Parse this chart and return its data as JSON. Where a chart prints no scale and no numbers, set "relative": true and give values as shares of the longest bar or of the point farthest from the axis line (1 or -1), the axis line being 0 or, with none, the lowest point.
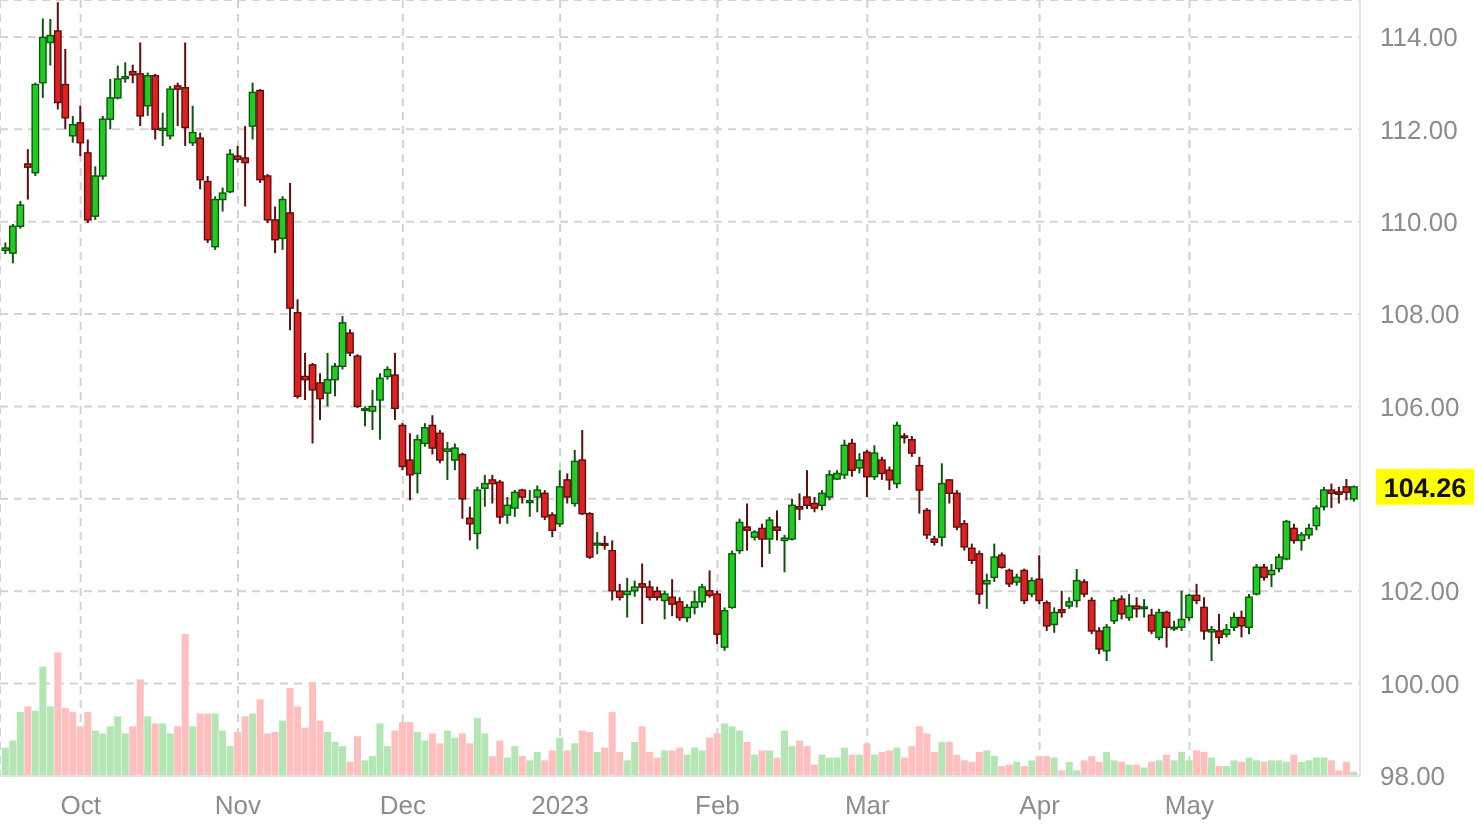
{
  "chart_data": [
    {
      "type": "candlestick",
      "categories": [
        null,
        null,
        null,
        null,
        null,
        null,
        null,
        null,
        null,
        null,
        "Oct",
        null,
        null,
        null,
        null,
        null,
        null,
        null,
        null,
        null,
        null,
        null,
        null,
        null,
        null,
        null,
        null,
        null,
        null,
        null,
        null,
        "Nov",
        null,
        null,
        null,
        null,
        null,
        null,
        null,
        null,
        null,
        null,
        null,
        null,
        null,
        null,
        null,
        null,
        null,
        null,
        null,
        null,
        null,
        "Dec",
        null,
        null,
        null,
        null,
        null,
        null,
        null,
        null,
        null,
        null,
        null,
        null,
        null,
        null,
        null,
        null,
        null,
        null,
        null,
        null,
        "2023",
        null,
        null,
        null,
        null,
        null,
        null,
        null,
        null,
        null,
        null,
        null,
        null,
        null,
        null,
        null,
        null,
        null,
        null,
        null,
        null,
        "Feb",
        null,
        null,
        null,
        null,
        null,
        null,
        null,
        null,
        null,
        null,
        null,
        null,
        null,
        null,
        null,
        null,
        null,
        null,
        null,
        "Mar",
        null,
        null,
        null,
        null,
        null,
        null,
        null,
        null,
        null,
        null,
        null,
        null,
        null,
        null,
        null,
        null,
        null,
        null,
        null,
        null,
        null,
        null,
        "Apr",
        null,
        null,
        null,
        null,
        null,
        null,
        null,
        null,
        null,
        null,
        null,
        null,
        null,
        null,
        null,
        null,
        null,
        null,
        null,
        "May",
        null,
        null,
        null,
        null,
        null,
        null,
        null,
        null,
        null,
        null,
        null,
        null,
        null,
        null,
        null,
        null,
        null,
        null,
        null,
        null,
        null,
        null
      ],
      "ohlc": [
        [
          109.38,
          109.55,
          109.3,
          109.43
        ],
        [
          109.32,
          109.95,
          109.1,
          109.9
        ],
        [
          109.9,
          110.45,
          109.85,
          110.36
        ],
        [
          111.25,
          111.57,
          110.48,
          111.18
        ],
        [
          111.06,
          113.01,
          110.99,
          112.97
        ],
        [
          113.01,
          114.4,
          112.68,
          113.99
        ],
        [
          113.88,
          114.39,
          113.38,
          114.03
        ],
        [
          114.13,
          114.75,
          112.43,
          112.58
        ],
        [
          112.97,
          113.74,
          112.0,
          112.25
        ],
        [
          111.86,
          112.29,
          111.71,
          112.1
        ],
        [
          112.14,
          112.51,
          111.42,
          111.71
        ],
        [
          111.49,
          111.78,
          109.97,
          110.04
        ],
        [
          110.12,
          111.2,
          110.04,
          110.99
        ],
        [
          110.99,
          112.29,
          110.91,
          112.22
        ],
        [
          112.22,
          113.09,
          112.0,
          112.68
        ],
        [
          112.68,
          113.38,
          112.65,
          113.09
        ],
        [
          113.1,
          113.45,
          113.01,
          113.14
        ],
        [
          113.25,
          113.4,
          113.0,
          113.18
        ],
        [
          113.2,
          113.88,
          112.07,
          112.29
        ],
        [
          112.51,
          113.23,
          112.29,
          113.16
        ],
        [
          113.16,
          113.2,
          111.78,
          112.0
        ],
        [
          111.98,
          112.36,
          111.64,
          112.02
        ],
        [
          111.86,
          112.94,
          111.78,
          112.87
        ],
        [
          112.94,
          113.01,
          112.07,
          112.87
        ],
        [
          112.9,
          113.88,
          111.64,
          112.04
        ],
        [
          111.71,
          112.51,
          111.64,
          111.93
        ],
        [
          111.81,
          111.93,
          110.7,
          110.91
        ],
        [
          110.87,
          110.99,
          109.54,
          109.61
        ],
        [
          109.46,
          110.55,
          109.39,
          110.48
        ],
        [
          110.48,
          110.74,
          110.22,
          110.62
        ],
        [
          110.65,
          111.57,
          110.62,
          111.46
        ],
        [
          111.42,
          111.64,
          111.28,
          111.35
        ],
        [
          111.38,
          112.07,
          110.33,
          111.28
        ],
        [
          112.07,
          113.01,
          111.78,
          112.8
        ],
        [
          112.84,
          112.87,
          110.84,
          110.91
        ],
        [
          110.99,
          111.03,
          109.97,
          110.04
        ],
        [
          110.04,
          110.33,
          109.32,
          109.61
        ],
        [
          109.64,
          110.55,
          109.39,
          110.48
        ],
        [
          110.19,
          110.84,
          107.65,
          108.13
        ],
        [
          108.03,
          108.32,
          106.17,
          106.22
        ],
        [
          106.65,
          107.16,
          106.14,
          106.58
        ],
        [
          106.9,
          106.94,
          105.2,
          106.36
        ],
        [
          106.51,
          106.72,
          105.71,
          106.17
        ],
        [
          106.29,
          107.16,
          106.0,
          106.58
        ],
        [
          106.58,
          106.94,
          106.22,
          106.87
        ],
        [
          106.87,
          107.96,
          106.8,
          107.81
        ],
        [
          107.59,
          107.67,
          107.09,
          107.16
        ],
        [
          107.09,
          107.13,
          105.97,
          106.0
        ],
        [
          105.92,
          106.0,
          105.57,
          105.95
        ],
        [
          105.9,
          106.36,
          105.49,
          106.0
        ],
        [
          106.14,
          106.72,
          105.28,
          106.61
        ],
        [
          106.65,
          106.87,
          106.58,
          106.8
        ],
        [
          106.68,
          107.16,
          105.71,
          105.96
        ],
        [
          105.59,
          105.64,
          104.62,
          104.7
        ],
        [
          104.84,
          105.42,
          103.97,
          104.52
        ],
        [
          104.55,
          105.39,
          104.12,
          105.28
        ],
        [
          105.2,
          105.64,
          105.13,
          105.54
        ],
        [
          105.59,
          105.81,
          104.96,
          105.1
        ],
        [
          105.42,
          105.49,
          104.77,
          104.84
        ],
        [
          105.03,
          105.23,
          104.41,
          105.08
        ],
        [
          104.84,
          105.2,
          104.62,
          105.1
        ],
        [
          104.96,
          105.0,
          103.57,
          104.0
        ],
        [
          103.58,
          103.83,
          103.1,
          103.46
        ],
        [
          103.25,
          104.26,
          102.91,
          104.19
        ],
        [
          104.23,
          104.52,
          103.83,
          104.33
        ],
        [
          104.41,
          104.52,
          103.9,
          104.33
        ],
        [
          104.36,
          104.41,
          103.46,
          103.61
        ],
        [
          103.65,
          104.04,
          103.46,
          103.86
        ],
        [
          103.8,
          104.19,
          103.61,
          104.14
        ],
        [
          104.19,
          104.22,
          103.9,
          104.04
        ],
        [
          103.92,
          104.19,
          103.61,
          103.96
        ],
        [
          104.04,
          104.29,
          103.71,
          104.19
        ],
        [
          104.12,
          104.19,
          103.54,
          103.61
        ],
        [
          103.65,
          103.71,
          103.17,
          103.32
        ],
        [
          103.46,
          104.62,
          103.39,
          104.26
        ],
        [
          104.41,
          104.55,
          103.9,
          104.04
        ],
        [
          103.9,
          105.06,
          103.83,
          104.81
        ],
        [
          104.84,
          105.49,
          103.65,
          103.68
        ],
        [
          103.68,
          103.71,
          102.7,
          102.74
        ],
        [
          103.0,
          103.28,
          102.8,
          103.04
        ],
        [
          103.03,
          103.2,
          102.9,
          103.0
        ],
        [
          102.88,
          103.1,
          101.8,
          102.01
        ],
        [
          102.0,
          102.16,
          101.8,
          101.87
        ],
        [
          101.93,
          102.29,
          101.43,
          102.0
        ],
        [
          102.01,
          102.23,
          101.88,
          102.09
        ],
        [
          102.16,
          102.6,
          101.29,
          102.09
        ],
        [
          102.09,
          102.23,
          101.8,
          101.87
        ],
        [
          102.0,
          102.1,
          101.8,
          101.87
        ],
        [
          101.8,
          102.01,
          101.39,
          101.94
        ],
        [
          101.87,
          102.26,
          101.46,
          101.72
        ],
        [
          101.77,
          101.87,
          101.36,
          101.43
        ],
        [
          101.43,
          101.72,
          101.33,
          101.65
        ],
        [
          101.65,
          102.01,
          101.5,
          101.77
        ],
        [
          101.77,
          102.16,
          101.65,
          102.09
        ],
        [
          102.01,
          102.45,
          101.86,
          101.91
        ],
        [
          101.94,
          102.01,
          100.86,
          101.07
        ],
        [
          100.79,
          101.65,
          100.71,
          101.58
        ],
        [
          101.65,
          102.88,
          101.62,
          102.81
        ],
        [
          102.88,
          103.57,
          102.81,
          103.49
        ],
        [
          103.39,
          103.9,
          102.88,
          103.32
        ],
        [
          103.17,
          103.32,
          103.1,
          103.28
        ],
        [
          103.36,
          103.46,
          102.52,
          103.13
        ],
        [
          103.13,
          103.61,
          102.81,
          103.54
        ],
        [
          103.39,
          103.75,
          103.1,
          103.32
        ],
        [
          103.1,
          103.22,
          102.41,
          103.15
        ],
        [
          103.13,
          104.0,
          103.1,
          103.86
        ],
        [
          103.83,
          104.12,
          103.54,
          103.78
        ],
        [
          104.04,
          104.62,
          103.78,
          103.86
        ],
        [
          103.9,
          104.04,
          103.71,
          103.8
        ],
        [
          103.86,
          104.19,
          103.75,
          104.12
        ],
        [
          104.04,
          104.62,
          103.97,
          104.52
        ],
        [
          104.43,
          104.62,
          104.41,
          104.55
        ],
        [
          104.52,
          105.28,
          104.43,
          105.16
        ],
        [
          105.2,
          105.3,
          104.48,
          104.62
        ],
        [
          104.67,
          104.99,
          104.55,
          104.84
        ],
        [
          105.01,
          105.06,
          104.04,
          104.48
        ],
        [
          104.48,
          105.16,
          104.41,
          104.99
        ],
        [
          104.84,
          104.91,
          104.41,
          104.55
        ],
        [
          104.62,
          104.7,
          104.19,
          104.41
        ],
        [
          104.33,
          105.67,
          104.23,
          105.59
        ],
        [
          105.36,
          105.42,
          105.2,
          105.33
        ],
        [
          105.28,
          105.36,
          104.91,
          104.99
        ],
        [
          104.72,
          104.91,
          103.68,
          104.19
        ],
        [
          103.75,
          103.8,
          103.13,
          103.22
        ],
        [
          103.13,
          103.2,
          102.99,
          103.06
        ],
        [
          103.17,
          104.77,
          102.97,
          104.33
        ],
        [
          104.41,
          104.43,
          103.9,
          104.12
        ],
        [
          104.12,
          104.19,
          103.32,
          103.39
        ],
        [
          103.46,
          103.54,
          102.88,
          102.96
        ],
        [
          102.93,
          103.03,
          102.59,
          102.67
        ],
        [
          102.81,
          102.88,
          101.72,
          101.94
        ],
        [
          102.16,
          102.38,
          101.62,
          102.23
        ],
        [
          102.3,
          103.03,
          102.2,
          102.74
        ],
        [
          102.78,
          102.84,
          102.49,
          102.52
        ],
        [
          102.45,
          102.49,
          102.09,
          102.16
        ],
        [
          102.2,
          102.38,
          102.12,
          102.3
        ],
        [
          102.45,
          102.49,
          101.72,
          101.8
        ],
        [
          101.94,
          102.3,
          101.87,
          102.23
        ],
        [
          102.26,
          102.78,
          101.72,
          101.8
        ],
        [
          101.75,
          101.8,
          101.14,
          101.25
        ],
        [
          101.28,
          101.65,
          101.1,
          101.54
        ],
        [
          101.6,
          102.01,
          101.43,
          101.54
        ],
        [
          101.68,
          101.87,
          101.62,
          101.77
        ],
        [
          101.8,
          102.48,
          101.65,
          102.23
        ],
        [
          102.2,
          102.26,
          101.87,
          101.94
        ],
        [
          101.8,
          101.87,
          101.07,
          101.14
        ],
        [
          101.14,
          101.22,
          100.64,
          100.75
        ],
        [
          100.71,
          101.29,
          100.49,
          101.22
        ],
        [
          101.36,
          101.87,
          101.29,
          101.8
        ],
        [
          101.83,
          101.91,
          101.39,
          101.51
        ],
        [
          101.43,
          101.94,
          101.36,
          101.68
        ],
        [
          101.68,
          101.87,
          101.43,
          101.62
        ],
        [
          101.63,
          101.83,
          101.43,
          101.66
        ],
        [
          101.48,
          101.62,
          101.07,
          101.14
        ],
        [
          101.0,
          101.62,
          100.94,
          101.54
        ],
        [
          101.54,
          101.58,
          100.78,
          101.22
        ],
        [
          101.2,
          101.36,
          101.14,
          101.22
        ],
        [
          101.22,
          102.01,
          101.14,
          101.39
        ],
        [
          101.43,
          101.94,
          101.36,
          101.91
        ],
        [
          101.91,
          102.16,
          101.72,
          101.8
        ],
        [
          101.65,
          101.87,
          100.95,
          101.14
        ],
        [
          101.12,
          101.25,
          100.49,
          101.17
        ],
        [
          101.14,
          101.51,
          100.86,
          101.0
        ],
        [
          101.07,
          101.29,
          101.0,
          101.17
        ],
        [
          101.22,
          101.54,
          101.14,
          101.43
        ],
        [
          101.43,
          101.58,
          101.0,
          101.25
        ],
        [
          101.22,
          101.94,
          101.07,
          101.87
        ],
        [
          101.94,
          102.59,
          101.91,
          102.52
        ],
        [
          102.52,
          102.59,
          102.23,
          102.3
        ],
        [
          102.36,
          102.59,
          102.09,
          102.45
        ],
        [
          102.49,
          102.81,
          102.41,
          102.74
        ],
        [
          102.7,
          103.54,
          102.67,
          103.51
        ],
        [
          103.36,
          103.46,
          103.03,
          103.1
        ],
        [
          103.1,
          103.28,
          102.88,
          103.22
        ],
        [
          103.22,
          103.46,
          103.13,
          103.36
        ],
        [
          103.42,
          103.86,
          103.32,
          103.8
        ],
        [
          103.83,
          104.26,
          103.75,
          104.19
        ],
        [
          104.19,
          104.33,
          103.8,
          104.12
        ],
        [
          104.15,
          104.26,
          103.9,
          104.1
        ],
        [
          104.26,
          104.43,
          103.97,
          104.14
        ],
        [
          104.0,
          104.29,
          103.94,
          104.26
        ]
      ],
      "colors": [
        "#22cc22",
        "#22cc22",
        "#22cc22",
        "#dd2222",
        "#22cc22",
        "#22cc22",
        "#22cc22",
        "#dd2222",
        "#dd2222",
        "#22cc22",
        "#dd2222",
        "#dd2222",
        "#22cc22",
        "#22cc22",
        "#22cc22",
        "#22cc22",
        "#22cc22",
        "#dd2222",
        "#dd2222",
        "#22cc22",
        "#dd2222",
        "#22cc22",
        "#22cc22",
        "#dd2222",
        "#dd2222",
        "#22cc22",
        "#dd2222",
        "#dd2222",
        "#22cc22",
        "#22cc22",
        "#22cc22",
        "#dd2222",
        "#dd2222",
        "#22cc22",
        "#dd2222",
        "#dd2222",
        "#dd2222",
        "#22cc22",
        "#dd2222",
        "#dd2222",
        "#dd2222",
        "#dd2222",
        "#dd2222",
        "#22cc22",
        "#22cc22",
        "#22cc22",
        "#dd2222",
        "#dd2222",
        "#22cc22",
        "#22cc22",
        "#22cc22",
        "#22cc22",
        "#dd2222",
        "#dd2222",
        "#dd2222",
        "#22cc22",
        "#22cc22",
        "#dd2222",
        "#dd2222",
        "#22cc22",
        "#22cc22",
        "#dd2222",
        "#dd2222",
        "#22cc22",
        "#22cc22",
        "#dd2222",
        "#dd2222",
        "#22cc22",
        "#22cc22",
        "#dd2222",
        "#22cc22",
        "#22cc22",
        "#dd2222",
        "#dd2222",
        "#22cc22",
        "#dd2222",
        "#22cc22",
        "#dd2222",
        "#dd2222",
        "#22cc22",
        "#dd2222",
        "#dd2222",
        "#dd2222",
        "#22cc22",
        "#22cc22",
        "#dd2222",
        "#dd2222",
        "#dd2222",
        "#22cc22",
        "#dd2222",
        "#dd2222",
        "#22cc22",
        "#22cc22",
        "#22cc22",
        "#dd2222",
        "#dd2222",
        "#22cc22",
        "#22cc22",
        "#22cc22",
        "#dd2222",
        "#22cc22",
        "#dd2222",
        "#22cc22",
        "#dd2222",
        "#22cc22",
        "#22cc22",
        "#dd2222",
        "#dd2222",
        "#dd2222",
        "#22cc22",
        "#22cc22",
        "#22cc22",
        "#22cc22",
        "#dd2222",
        "#22cc22",
        "#dd2222",
        "#22cc22",
        "#dd2222",
        "#dd2222",
        "#22cc22",
        "#dd2222",
        "#dd2222",
        "#dd2222",
        "#dd2222",
        "#dd2222",
        "#22cc22",
        "#dd2222",
        "#dd2222",
        "#dd2222",
        "#dd2222",
        "#dd2222",
        "#22cc22",
        "#22cc22",
        "#dd2222",
        "#dd2222",
        "#22cc22",
        "#dd2222",
        "#22cc22",
        "#dd2222",
        "#dd2222",
        "#22cc22",
        "#dd2222",
        "#22cc22",
        "#22cc22",
        "#dd2222",
        "#dd2222",
        "#dd2222",
        "#22cc22",
        "#22cc22",
        "#dd2222",
        "#22cc22",
        "#dd2222",
        "#22cc22",
        "#dd2222",
        "#22cc22",
        "#dd2222",
        "#22cc22",
        "#22cc22",
        "#22cc22",
        "#dd2222",
        "#dd2222",
        "#22cc22",
        "#dd2222",
        "#22cc22",
        "#22cc22",
        "#dd2222",
        "#22cc22",
        "#22cc22",
        "#dd2222",
        "#22cc22",
        "#22cc22",
        "#22cc22",
        "#dd2222",
        "#22cc22",
        "#22cc22",
        "#22cc22",
        "#22cc22",
        "#dd2222",
        "#dd2222",
        "#dd2222",
        "#22cc22"
      ],
      "ylim": [
        98,
        114.8
      ],
      "yticks": [
        {
          "value": 98,
          "label": "98.00"
        },
        {
          "value": 100,
          "label": "100.00"
        },
        {
          "value": 102,
          "label": "102.00"
        },
        {
          "value": 104,
          "label": null
        },
        {
          "value": 106,
          "label": "106.00"
        },
        {
          "value": 108,
          "label": "108.00"
        },
        {
          "value": 110,
          "label": "110.00"
        },
        {
          "value": 112,
          "label": "112.00"
        },
        {
          "value": 114,
          "label": "114.00"
        }
      ],
      "grid": true,
      "annotations": [
        "104.26"
      ]
    },
    {
      "type": "bar",
      "relative": true,
      "categories": [
        null,
        null,
        null,
        null,
        null,
        null,
        null,
        null,
        null,
        null,
        null,
        null,
        null,
        null,
        null,
        null,
        null,
        null,
        null,
        null,
        null,
        null,
        null,
        null,
        null,
        null,
        null,
        null,
        null,
        null,
        null,
        null,
        null,
        null,
        null,
        null,
        null,
        null,
        null,
        null,
        null,
        null,
        null,
        null,
        null,
        null,
        null,
        null,
        null,
        null,
        null,
        null,
        null,
        null,
        null,
        null,
        null,
        null,
        null,
        null,
        null,
        null,
        null,
        null,
        null,
        null,
        null,
        null,
        null,
        null,
        null,
        null,
        null,
        null,
        null,
        null,
        null,
        null,
        null,
        null,
        null,
        null,
        null,
        null,
        null,
        null,
        null,
        null,
        null,
        null,
        null,
        null,
        null,
        null,
        null,
        null,
        null,
        null,
        null,
        null,
        null,
        null,
        null,
        null,
        null,
        null,
        null,
        null,
        null,
        null,
        null,
        null,
        null,
        null,
        null,
        null,
        null,
        null,
        null,
        null,
        null,
        null,
        null,
        null,
        null,
        null,
        null,
        null,
        null,
        null,
        null,
        null,
        null,
        null,
        null,
        null,
        null,
        null,
        null,
        null,
        null,
        null,
        null,
        null,
        null,
        null,
        null,
        null,
        null,
        null,
        null,
        null,
        null,
        null,
        null,
        null,
        null,
        null,
        null,
        null,
        null,
        null,
        null,
        null,
        null,
        null,
        null,
        null,
        null,
        null,
        null,
        null,
        null,
        null,
        null,
        null,
        null,
        null,
        null,
        null,
        null
      ],
      "values": [
        0.2,
        0.25,
        0.45,
        0.49,
        0.46,
        0.77,
        0.49,
        0.87,
        0.48,
        0.45,
        0.35,
        0.45,
        0.32,
        0.3,
        0.35,
        0.42,
        0.3,
        0.35,
        0.68,
        0.42,
        0.37,
        0.37,
        0.3,
        0.35,
        1,
        0.35,
        0.44,
        0.44,
        0.44,
        0.32,
        0.21,
        0.31,
        0.42,
        0.44,
        0.54,
        0.3,
        0.31,
        0.39,
        0.62,
        0.49,
        0.34,
        0.66,
        0.39,
        0.31,
        0.24,
        0.21,
        0.1,
        0.28,
        0.11,
        0.14,
        0.37,
        0.21,
        0.32,
        0.38,
        0.38,
        0.31,
        0.25,
        0.3,
        0.23,
        0.32,
        0.27,
        0.3,
        0.23,
        0.41,
        0.3,
        0.14,
        0.25,
        0.13,
        0.21,
        0.14,
        0.11,
        0.17,
        0.11,
        0.18,
        0.27,
        0.18,
        0.23,
        0.32,
        0.31,
        0.17,
        0.2,
        0.45,
        0.17,
        0.11,
        0.24,
        0.35,
        0.17,
        0.13,
        0.18,
        0.18,
        0.2,
        0.15,
        0.2,
        0.18,
        0.27,
        0.3,
        0.37,
        0.35,
        0.32,
        0.24,
        0.15,
        0.18,
        0.18,
        0.13,
        0.32,
        0.21,
        0.25,
        0.21,
        0.08,
        0.15,
        0.13,
        0.13,
        0.2,
        0.15,
        0.15,
        0.23,
        0.15,
        0.17,
        0.18,
        0.2,
        0.13,
        0.21,
        0.35,
        0.3,
        0.17,
        0.24,
        0.24,
        0.15,
        0.11,
        0.1,
        0.17,
        0.18,
        0.14,
        0.07,
        0.08,
        0.1,
        0.07,
        0.11,
        0.14,
        0.14,
        0.13,
        0.04,
        0.1,
        0.04,
        0.11,
        0.14,
        0.1,
        0.17,
        0.11,
        0.1,
        0.08,
        0.08,
        0.06,
        0.1,
        0.11,
        0.15,
        0.11,
        0.17,
        0.11,
        0.18,
        0.17,
        0.13,
        0.07,
        0.07,
        0.11,
        0.1,
        0.13,
        0.11,
        0.1,
        0.11,
        0.11,
        0.1,
        0.15,
        0.1,
        0.11,
        0.13,
        0.13,
        0.11,
        0.04,
        0.1,
        0.03
      ],
      "colors": [
        "#b3e6b3",
        "#b3e6b3",
        "#b3e6b3",
        "#ffbfbf",
        "#b3e6b3",
        "#b3e6b3",
        "#b3e6b3",
        "#ffbfbf",
        "#ffbfbf",
        "#ffbfbf",
        "#ffbfbf",
        "#ffbfbf",
        "#b3e6b3",
        "#b3e6b3",
        "#b3e6b3",
        "#b3e6b3",
        "#b3e6b3",
        "#ffbfbf",
        "#ffbfbf",
        "#b3e6b3",
        "#ffbfbf",
        "#b3e6b3",
        "#b3e6b3",
        "#ffbfbf",
        "#ffbfbf",
        "#b3e6b3",
        "#ffbfbf",
        "#ffbfbf",
        "#b3e6b3",
        "#b3e6b3",
        "#b3e6b3",
        "#ffbfbf",
        "#ffbfbf",
        "#b3e6b3",
        "#ffbfbf",
        "#ffbfbf",
        "#ffbfbf",
        "#b3e6b3",
        "#ffbfbf",
        "#ffbfbf",
        "#ffbfbf",
        "#ffbfbf",
        "#ffbfbf",
        "#b3e6b3",
        "#b3e6b3",
        "#b3e6b3",
        "#ffbfbf",
        "#ffbfbf",
        "#b3e6b3",
        "#b3e6b3",
        "#b3e6b3",
        "#b3e6b3",
        "#ffbfbf",
        "#ffbfbf",
        "#ffbfbf",
        "#b3e6b3",
        "#b3e6b3",
        "#ffbfbf",
        "#ffbfbf",
        "#b3e6b3",
        "#b3e6b3",
        "#ffbfbf",
        "#ffbfbf",
        "#b3e6b3",
        "#b3e6b3",
        "#ffbfbf",
        "#ffbfbf",
        "#b3e6b3",
        "#b3e6b3",
        "#ffbfbf",
        "#b3e6b3",
        "#b3e6b3",
        "#ffbfbf",
        "#ffbfbf",
        "#b3e6b3",
        "#ffbfbf",
        "#b3e6b3",
        "#ffbfbf",
        "#ffbfbf",
        "#b3e6b3",
        "#ffbfbf",
        "#ffbfbf",
        "#ffbfbf",
        "#b3e6b3",
        "#b3e6b3",
        "#ffbfbf",
        "#ffbfbf",
        "#ffbfbf",
        "#b3e6b3",
        "#ffbfbf",
        "#ffbfbf",
        "#b3e6b3",
        "#b3e6b3",
        "#b3e6b3",
        "#ffbfbf",
        "#ffbfbf",
        "#b3e6b3",
        "#b3e6b3",
        "#b3e6b3",
        "#ffbfbf",
        "#b3e6b3",
        "#ffbfbf",
        "#b3e6b3",
        "#ffbfbf",
        "#b3e6b3",
        "#b3e6b3",
        "#ffbfbf",
        "#ffbfbf",
        "#ffbfbf",
        "#b3e6b3",
        "#b3e6b3",
        "#b3e6b3",
        "#b3e6b3",
        "#ffbfbf",
        "#b3e6b3",
        "#ffbfbf",
        "#b3e6b3",
        "#ffbfbf",
        "#ffbfbf",
        "#b3e6b3",
        "#ffbfbf",
        "#ffbfbf",
        "#ffbfbf",
        "#ffbfbf",
        "#ffbfbf",
        "#b3e6b3",
        "#ffbfbf",
        "#ffbfbf",
        "#ffbfbf",
        "#ffbfbf",
        "#ffbfbf",
        "#b3e6b3",
        "#b3e6b3",
        "#ffbfbf",
        "#ffbfbf",
        "#b3e6b3",
        "#ffbfbf",
        "#b3e6b3",
        "#ffbfbf",
        "#ffbfbf",
        "#b3e6b3",
        "#ffbfbf",
        "#b3e6b3",
        "#b3e6b3",
        "#ffbfbf",
        "#ffbfbf",
        "#ffbfbf",
        "#b3e6b3",
        "#b3e6b3",
        "#ffbfbf",
        "#b3e6b3",
        "#ffbfbf",
        "#b3e6b3",
        "#ffbfbf",
        "#b3e6b3",
        "#ffbfbf",
        "#b3e6b3",
        "#b3e6b3",
        "#b3e6b3",
        "#ffbfbf",
        "#ffbfbf",
        "#b3e6b3",
        "#ffbfbf",
        "#b3e6b3",
        "#b3e6b3",
        "#ffbfbf",
        "#b3e6b3",
        "#b3e6b3",
        "#ffbfbf",
        "#b3e6b3",
        "#b3e6b3",
        "#b3e6b3",
        "#ffbfbf",
        "#b3e6b3",
        "#b3e6b3",
        "#b3e6b3",
        "#b3e6b3",
        "#ffbfbf",
        "#ffbfbf",
        "#ffbfbf",
        "#b3e6b3"
      ]
    }
  ]
}
